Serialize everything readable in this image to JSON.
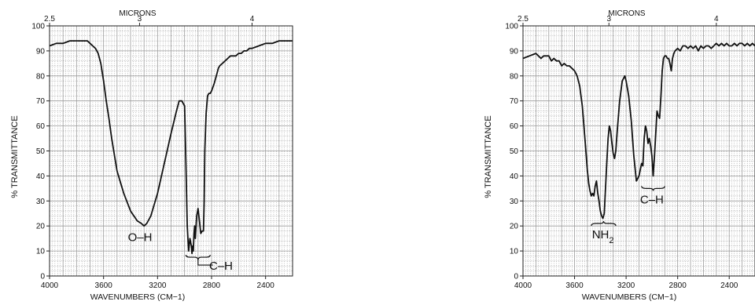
{
  "chart_data": [
    {
      "type": "line",
      "xlabel": "WAVENUMBERS (CM−1)",
      "ylabel": "% TRANSMITTANCE",
      "top_axis_label": "MICRONS",
      "top_ticks": [
        {
          "value": 2.5,
          "label": "2.5"
        },
        {
          "value": 3,
          "label": "3"
        },
        {
          "value": 4,
          "label": "4"
        }
      ],
      "xlim": [
        4000,
        2200
      ],
      "ylim": [
        0,
        100
      ],
      "x_ticks": [
        {
          "value": 4000,
          "label": "4000"
        },
        {
          "value": 3600,
          "label": "3600"
        },
        {
          "value": 3200,
          "label": "3200"
        },
        {
          "value": 2800,
          "label": "2800"
        },
        {
          "value": 2400,
          "label": "2400"
        }
      ],
      "y_ticks": [
        0,
        10,
        20,
        30,
        40,
        50,
        60,
        70,
        80,
        90,
        100
      ],
      "grid": true,
      "series": [
        {
          "x": [
            4000,
            3950,
            3900,
            3850,
            3800,
            3750,
            3720,
            3700,
            3680,
            3660,
            3640,
            3620,
            3600,
            3580,
            3560,
            3540,
            3500,
            3450,
            3400,
            3350,
            3320,
            3300,
            3280,
            3250,
            3200,
            3150,
            3100,
            3060,
            3040,
            3020,
            3010,
            3000,
            2990,
            2980,
            2970,
            2960,
            2950,
            2945,
            2940,
            2935,
            2930,
            2925,
            2920,
            2915,
            2910,
            2900,
            2890,
            2880,
            2870,
            2860,
            2855,
            2850,
            2840,
            2830,
            2820,
            2810,
            2800,
            2780,
            2760,
            2750,
            2740,
            2720,
            2700,
            2680,
            2660,
            2640,
            2620,
            2600,
            2580,
            2560,
            2540,
            2520,
            2500,
            2450,
            2400,
            2350,
            2300,
            2250,
            2200
          ],
          "y": [
            92,
            93,
            93,
            94,
            94,
            94,
            94,
            93,
            92,
            91,
            89,
            85,
            78,
            70,
            63,
            55,
            42,
            33,
            26,
            22,
            21,
            20,
            21,
            24,
            33,
            45,
            57,
            66,
            70,
            70,
            69,
            68,
            45,
            20,
            10,
            15,
            12,
            9,
            12,
            10,
            17,
            20,
            15,
            20,
            24,
            27,
            22,
            17,
            18,
            18,
            30,
            50,
            65,
            72,
            73,
            73,
            74,
            77,
            81,
            83,
            84,
            85,
            86,
            87,
            88,
            88,
            88,
            89,
            89,
            90,
            90,
            91,
            91,
            92,
            93,
            93,
            94,
            94,
            94
          ]
        }
      ],
      "annotations": [
        {
          "text": "O–H",
          "x": 3330,
          "y": 14
        },
        {
          "text": "C–H",
          "x": 2730,
          "y": 2.5
        }
      ]
    },
    {
      "type": "line",
      "xlabel": "WAVENUMBERS (CM−1)",
      "ylabel": "% TRANSMITTANCE",
      "top_axis_label": "MICRONS",
      "top_ticks": [
        {
          "value": 2.5,
          "label": "2.5"
        },
        {
          "value": 3,
          "label": "3"
        },
        {
          "value": 4,
          "label": "4"
        }
      ],
      "xlim": [
        4000,
        2200
      ],
      "ylim": [
        0,
        100
      ],
      "x_ticks": [
        {
          "value": 4000,
          "label": "4000"
        },
        {
          "value": 3600,
          "label": "3600"
        },
        {
          "value": 3200,
          "label": "3200"
        },
        {
          "value": 2800,
          "label": "2800"
        },
        {
          "value": 2400,
          "label": "2400"
        }
      ],
      "y_ticks": [
        0,
        10,
        20,
        30,
        40,
        50,
        60,
        70,
        80,
        90,
        100
      ],
      "grid": true,
      "series": [
        {
          "x": [
            4000,
            3950,
            3900,
            3880,
            3860,
            3840,
            3820,
            3800,
            3780,
            3760,
            3740,
            3720,
            3700,
            3680,
            3660,
            3640,
            3620,
            3600,
            3580,
            3560,
            3540,
            3520,
            3500,
            3490,
            3480,
            3470,
            3460,
            3450,
            3440,
            3430,
            3420,
            3410,
            3400,
            3390,
            3380,
            3370,
            3360,
            3350,
            3340,
            3330,
            3320,
            3310,
            3300,
            3290,
            3280,
            3270,
            3250,
            3230,
            3210,
            3200,
            3180,
            3160,
            3140,
            3120,
            3100,
            3080,
            3070,
            3060,
            3050,
            3040,
            3030,
            3020,
            3010,
            3000,
            2990,
            2980,
            2970,
            2960,
            2950,
            2940,
            2930,
            2920,
            2910,
            2900,
            2890,
            2880,
            2870,
            2860,
            2850,
            2840,
            2830,
            2820,
            2800,
            2780,
            2760,
            2740,
            2720,
            2700,
            2680,
            2660,
            2640,
            2620,
            2600,
            2580,
            2560,
            2540,
            2520,
            2500,
            2480,
            2460,
            2440,
            2420,
            2400,
            2380,
            2360,
            2340,
            2320,
            2300,
            2280,
            2260,
            2240,
            2220,
            2200
          ],
          "y": [
            87,
            88,
            89,
            88,
            87,
            88,
            88,
            88,
            86,
            87,
            86,
            86,
            84,
            85,
            84,
            84,
            83,
            82,
            80,
            76,
            68,
            55,
            42,
            37,
            34,
            32,
            33,
            32,
            36,
            38,
            33,
            30,
            26,
            24,
            23,
            25,
            35,
            45,
            55,
            60,
            58,
            53,
            49,
            47,
            50,
            57,
            70,
            78,
            80,
            78,
            72,
            62,
            48,
            38,
            40,
            45,
            44,
            55,
            60,
            58,
            53,
            55,
            52,
            48,
            40,
            48,
            57,
            66,
            64,
            63,
            72,
            82,
            87,
            88,
            88,
            87,
            87,
            85,
            82,
            87,
            89,
            90,
            91,
            90,
            92,
            92,
            91,
            92,
            91,
            92,
            90,
            92,
            91,
            92,
            92,
            91,
            92,
            93,
            92,
            93,
            92,
            93,
            92,
            92,
            93,
            92,
            93,
            93,
            92,
            93,
            92,
            93,
            92
          ]
        }
      ],
      "annotations": [
        {
          "text": "NH",
          "sub": "2",
          "x": 3380,
          "y": 15
        },
        {
          "text": "C–H",
          "x": 3000,
          "y": 29
        }
      ]
    }
  ]
}
